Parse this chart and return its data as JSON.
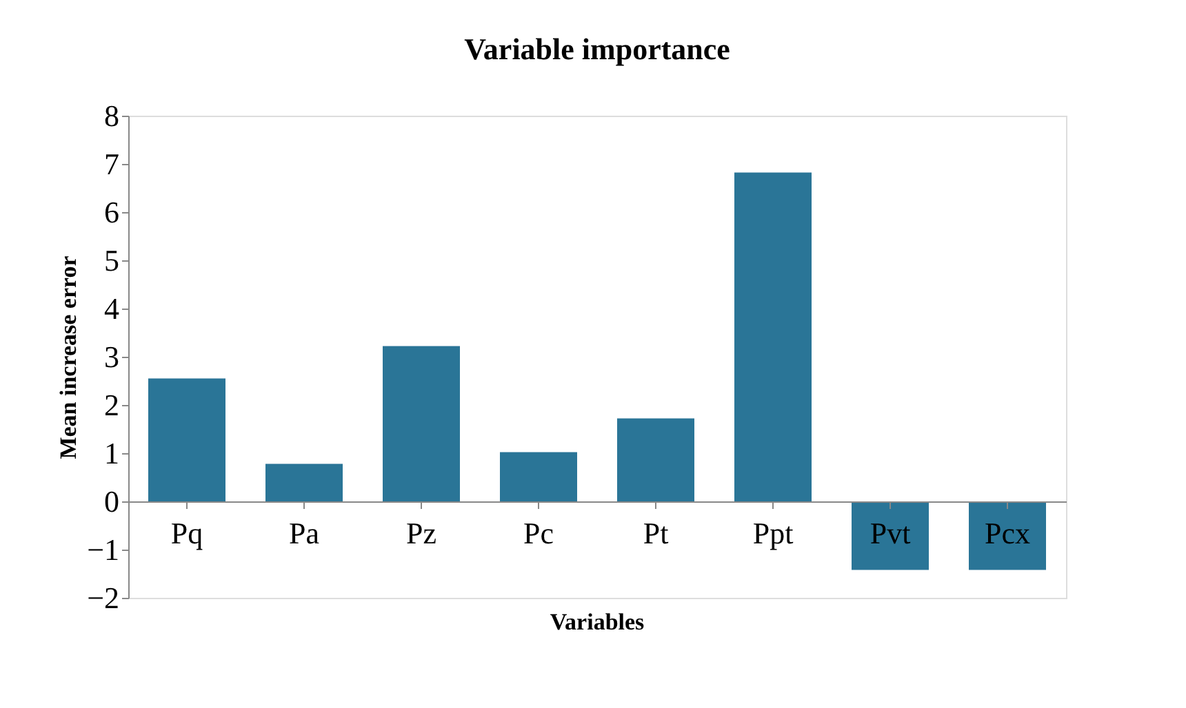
{
  "chart_data": {
    "type": "bar",
    "title": "Variable importance",
    "xlabel": "Variables",
    "ylabel": "Mean increase error",
    "categories": [
      "Pq",
      "Pa",
      "Pz",
      "Pc",
      "Pt",
      "Ppt",
      "Pvt",
      "Pcx"
    ],
    "values": [
      2.55,
      0.78,
      3.22,
      1.02,
      1.72,
      6.82,
      -1.42,
      -1.42
    ],
    "color": "#2a7597",
    "ylim": [
      -2,
      8
    ],
    "yticks": [
      -2,
      -1,
      0,
      1,
      2,
      3,
      4,
      5,
      6,
      7,
      8
    ],
    "grid": false
  }
}
